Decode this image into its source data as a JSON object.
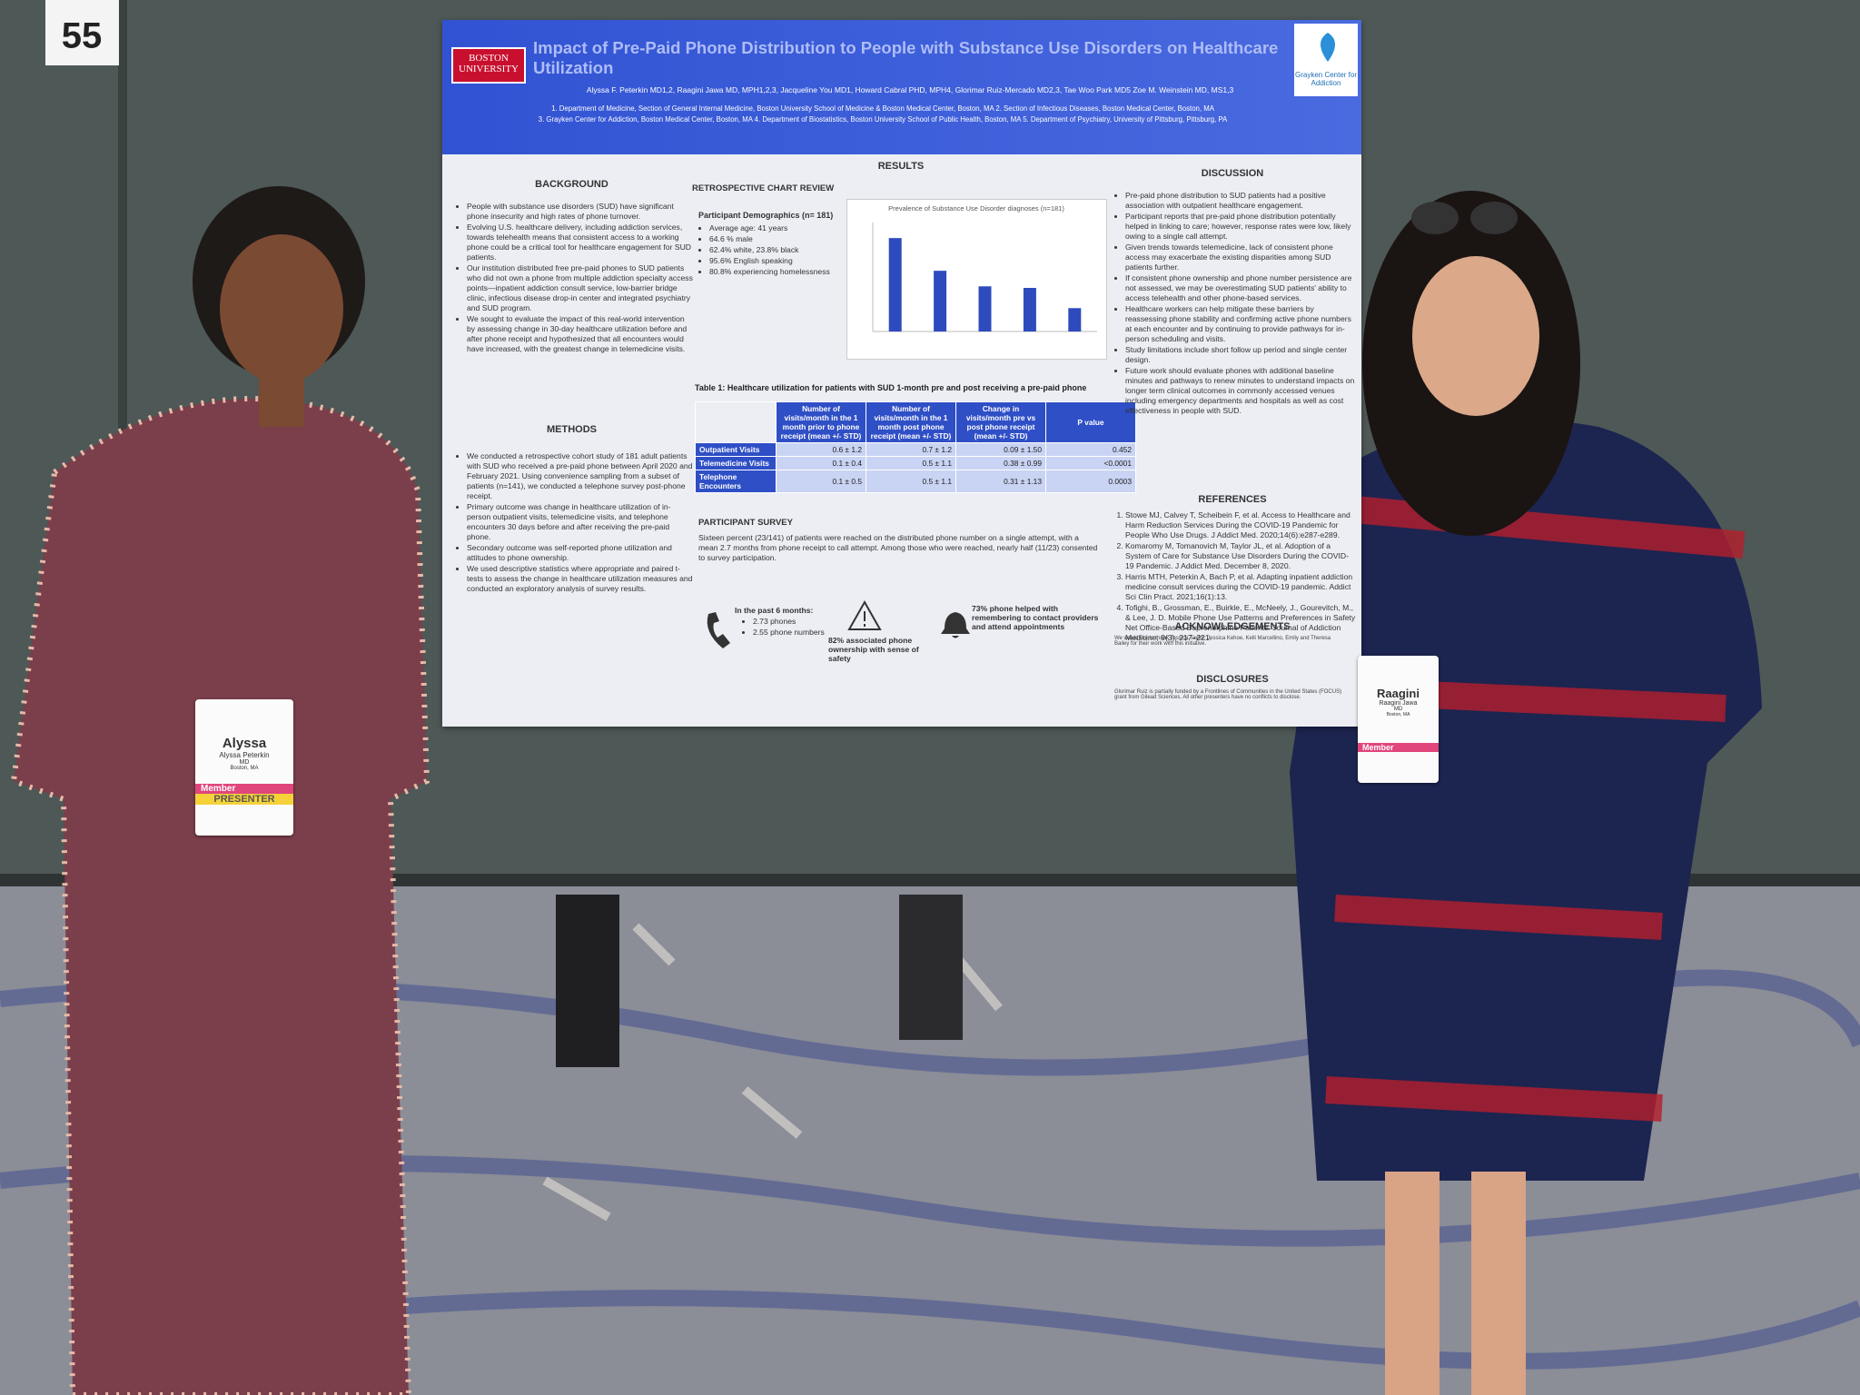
{
  "sign_number": "55",
  "poster": {
    "university": "BOSTON UNIVERSITY",
    "title": "Impact of Pre-Paid Phone Distribution to People with Substance Use Disorders on Healthcare Utilization",
    "logo": "Grayken Center for Addiction",
    "authors": "Alyssa F. Peterkin MD1,2, Raagini Jawa MD, MPH1,2,3, Jacqueline You MD1, Howard Cabral PHD, MPH4, Glorimar Ruiz-Mercado MD2,3, Tae Woo Park MD5 Zoe M. Weinstein MD, MS1,3",
    "affiliations": [
      "1. Department of Medicine, Section of General Internal Medicine, Boston University School of Medicine & Boston Medical Center, Boston, MA 2. Section of Infectious Diseases, Boston Medical Center, Boston, MA",
      "3. Grayken Center for Addiction, Boston Medical Center, Boston, MA 4. Department of Biostatistics, Boston University School of Public Health, Boston, MA 5. Department of Psychiatry, University of Pittsburg, Pittsburg, PA"
    ],
    "background": {
      "heading": "BACKGROUND",
      "bullets": [
        "People with substance use disorders (SUD) have significant phone insecurity and high rates of phone turnover.",
        "Evolving U.S. healthcare delivery, including addiction services, towards telehealth means that consistent access to a working phone could be a critical tool for healthcare engagement for SUD patients.",
        "Our institution distributed free pre-paid phones to SUD patients who did not own a phone from multiple addiction specialty access points—inpatient addiction consult service, low-barrier bridge clinic, infectious disease drop-in center and integrated psychiatry and SUD program.",
        "We sought to evaluate the impact of this real-world intervention by assessing change in 30-day healthcare utilization before and after phone receipt and hypothesized that all encounters would have increased, with the greatest change in telemedicine visits."
      ]
    },
    "methods": {
      "heading": "METHODS",
      "bullets": [
        "We conducted a retrospective cohort study of 181 adult patients with SUD who received a pre-paid phone between April 2020 and February 2021. Using convenience sampling from a subset of patients (n=141), we conducted a telephone survey post-phone receipt.",
        "Primary outcome was change in healthcare utilization of in-person outpatient visits, telemedicine visits, and telephone encounters 30 days before and after receiving the pre-paid phone.",
        "Secondary outcome was self-reported phone utilization and attitudes to phone ownership.",
        "We used descriptive statistics where appropriate and paired t-tests to assess the change in healthcare utilization measures and conducted an exploratory analysis of survey results."
      ]
    },
    "results": {
      "heading": "RESULTS",
      "chart_review": "RETROSPECTIVE CHART REVIEW",
      "demographics_title": "Participant Demographics (n= 181)",
      "demographics": [
        "Average age: 41 years",
        "64.6 % male",
        "62.4% white, 23.8% black",
        "95.6% English speaking",
        "80.8% experiencing homelessness"
      ],
      "chart": {
        "title": "Prevalence of Substance Use Disorder diagnoses (n=181)",
        "values": [
          600,
          390,
          290,
          280,
          150
        ],
        "ylim": [
          0,
          700
        ],
        "color": "#2e4bbd"
      },
      "table": {
        "caption": "Table 1:  Healthcare utilization for patients with SUD 1-month pre and post receiving a pre-paid phone",
        "header": [
          "Number of visits/month in the 1 month prior to phone receipt (mean +/- STD)",
          "Number of visits/month in the 1 month post phone receipt (mean +/- STD)",
          "Change in visits/month pre vs post phone receipt (mean +/- STD)",
          "P value"
        ],
        "rows": [
          [
            "Outpatient Visits",
            "0.6 ± 1.2",
            "0.7 ± 1.2",
            "0.09 ± 1.50",
            "0.452"
          ],
          [
            "Telemedicine Visits",
            "0.1 ± 0.4",
            "0.5 ± 1.1",
            "0.38 ± 0.99",
            "<0.0001"
          ],
          [
            "Telephone Encounters",
            "0.1 ± 0.5",
            "0.5 ± 1.1",
            "0.31 ± 1.13",
            "0.0003"
          ]
        ]
      },
      "survey_heading": "PARTICIPANT SURVEY",
      "survey_text": "Sixteen percent (23/141) of patients were reached on the distributed phone number on a single attempt, with a mean 2.7 months from phone receipt to call attempt. Among those who were reached, nearly half (11/23) consented to survey participation.",
      "survey_stats": [
        {
          "title": "In the past 6 months:",
          "items": [
            "2.73 phones",
            "2.55 phone numbers"
          ]
        },
        {
          "text": "82% associated phone ownership with sense of safety"
        },
        {
          "text": "73% phone helped with remembering to contact providers and attend appointments"
        }
      ]
    },
    "discussion": {
      "heading": "DISCUSSION",
      "bullets": [
        "Pre-paid phone distribution to SUD patients had a positive association with outpatient healthcare engagement.",
        "Participant reports that pre-paid phone distribution potentially helped in linking to care; however, response rates were low, likely owing to a single call attempt.",
        "Given trends towards telemedicine, lack of consistent phone access may exacerbate the existing disparities among SUD patients further.",
        "If consistent phone ownership and phone number persistence are not assessed, we may be overestimating SUD patients' ability to access telehealth and other phone-based services.",
        "Healthcare workers can help mitigate these barriers by reassessing phone stability and confirming active phone numbers at each encounter and by continuing to provide pathways for in-person scheduling and visits.",
        "Study limitations include short follow up period and single center design.",
        "Future work should evaluate phones with additional baseline minutes and pathways to renew minutes to understand impacts on longer term clinical outcomes in commonly accessed venues including emergency departments and hospitals as well as cost effectiveness in people with SUD."
      ]
    },
    "references": {
      "heading": "REFERENCES",
      "items": [
        "Stowe MJ, Calvey T, Scheibein F, et al. Access to Healthcare and Harm Reduction Services During the COVID-19 Pandemic for People Who Use Drugs. J Addict Med. 2020;14(6):e287-e289.",
        "Komaromy M, Tomanovich M, Taylor JL, et al. Adoption of a System of Care for Substance Use Disorders During the COVID-19 Pandemic. J Addict Med. December 8, 2020.",
        "Harris MTH, Peterkin A, Bach P, et al. Adapting inpatient addiction medicine consult services during the COVID-19 pandemic. Addict Sci Clin Pract. 2021;16(1):13.",
        "Tofighi, B., Grossman, E., Buirkle, E., McNeely, J., Gourevitch, M., & Lee, J. D. Mobile Phone Use Patterns and Preferences in Safety Net Office-Based Buprenorphine Patients. Journal of Addiction Medicine, 9(3), 217–221."
      ]
    },
    "acknowledgements": {
      "heading": "ACKNOWLEDGEMENTS",
      "text": "We would like to thank Jessica Taylor, Jessica Kehoe, Kelli Marcellino, Emily and Theresa Bailey for their work with this initiative."
    },
    "disclosures": {
      "heading": "DISCLOSURES",
      "text": "Glorimar Ruiz is partially funded by a Frontlines of Communities in the United States (FOCUS) grant from Gilead Sciences. All other presenters have no conflicts to disclose."
    }
  },
  "badges": [
    {
      "name": "Alyssa",
      "full_name": "Alyssa Peterkin",
      "credential": "MD",
      "city": "Boston, MA",
      "role": "Member",
      "tag": "PRESENTER"
    },
    {
      "name": "Raagini",
      "full_name": "Raagini Jawa",
      "credential": "MD",
      "city": "Boston, MA",
      "role": "Member"
    }
  ]
}
